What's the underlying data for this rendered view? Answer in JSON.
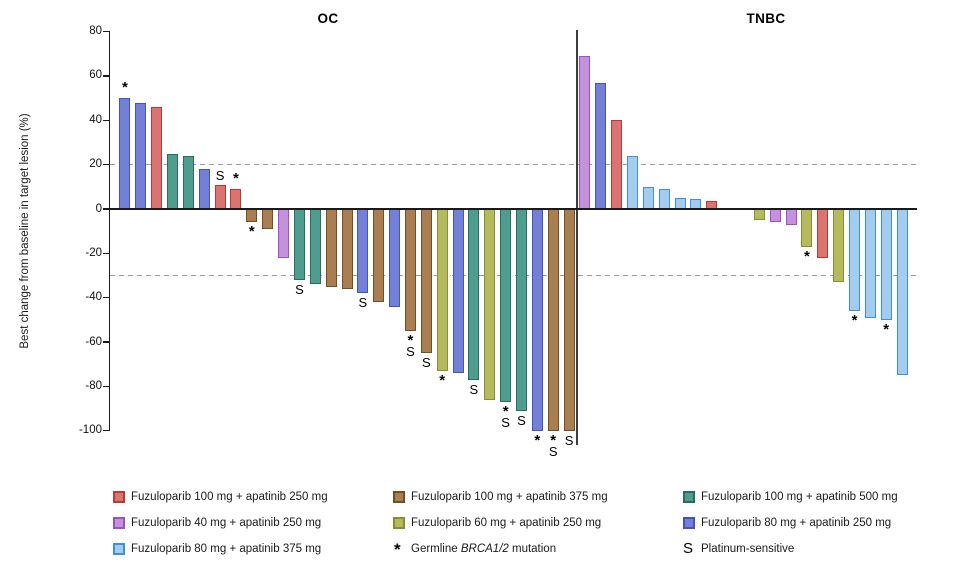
{
  "chart_data": {
    "type": "bar",
    "title": "",
    "xlabel": "",
    "ylabel": "Best change from baseline in target lesion (%)",
    "ylim": [
      -100,
      80
    ],
    "y_ticks": [
      80,
      60,
      40,
      20,
      0,
      -20,
      -40,
      -60,
      -80,
      -100
    ],
    "reference_lines": [
      20,
      -30
    ],
    "grid": "off",
    "legend_position": "bottom",
    "groups": {
      "f100_a250": {
        "label": "Fuzuloparib 100 mg + apatinib 250 mg",
        "fill": "#DB7370",
        "border": "#B43C34"
      },
      "f40_a250": {
        "label": "Fuzuloparib 40 mg + apatinib 250 mg",
        "fill": "#C590DC",
        "border": "#9A51C6"
      },
      "f80_a375": {
        "label": "Fuzuloparib 80 mg + apatinib 375 mg",
        "fill": "#A3CCEE",
        "border": "#3E8FDE"
      },
      "f100_a375": {
        "label": "Fuzuloparib 100 mg + apatinib 375 mg",
        "fill": "#A97E51",
        "border": "#715023"
      },
      "f60_a250": {
        "label": "Fuzuloparib 60 mg + apatinib 250 mg",
        "fill": "#B5BA5E",
        "border": "#878F2E"
      },
      "f100_a500": {
        "label": "Fuzuloparib 100 mg + apatinib 500 mg",
        "fill": "#4F9D8F",
        "border": "#2B6C60"
      },
      "f80_a250": {
        "label": "Fuzuloparib 80 mg + apatinib 250 mg",
        "fill": "#7280D5",
        "border": "#4453BE"
      }
    },
    "panels": [
      {
        "title": "OC",
        "bars": [
          {
            "value": 50,
            "group": "f80_a250",
            "marks": [
              "brca"
            ]
          },
          {
            "value": 48,
            "group": "f80_a250"
          },
          {
            "value": 46,
            "group": "f100_a250"
          },
          {
            "value": 25,
            "group": "f100_a500"
          },
          {
            "value": 24,
            "group": "f100_a500"
          },
          {
            "value": 18,
            "group": "f80_a250"
          },
          {
            "value": 11,
            "group": "f100_a250",
            "marks": [
              "platinum"
            ]
          },
          {
            "value": 9,
            "group": "f100_a250",
            "marks": [
              "brca"
            ]
          },
          {
            "value": -6,
            "group": "f100_a375",
            "marks": [
              "brca"
            ]
          },
          {
            "value": -9,
            "group": "f100_a375"
          },
          {
            "value": -22,
            "group": "f40_a250"
          },
          {
            "value": -32,
            "group": "f100_a500",
            "marks": [
              "platinum"
            ]
          },
          {
            "value": -34,
            "group": "f100_a500"
          },
          {
            "value": -35,
            "group": "f100_a375"
          },
          {
            "value": -36,
            "group": "f100_a375"
          },
          {
            "value": -38,
            "group": "f80_a250",
            "marks": [
              "platinum"
            ]
          },
          {
            "value": -42,
            "group": "f100_a375"
          },
          {
            "value": -44,
            "group": "f80_a250"
          },
          {
            "value": -55,
            "group": "f100_a375",
            "marks": [
              "brca",
              "platinum"
            ]
          },
          {
            "value": -65,
            "group": "f100_a375",
            "marks": [
              "platinum"
            ]
          },
          {
            "value": -73,
            "group": "f60_a250",
            "marks": [
              "brca"
            ]
          },
          {
            "value": -74,
            "group": "f80_a250"
          },
          {
            "value": -77,
            "group": "f100_a500",
            "marks": [
              "platinum"
            ]
          },
          {
            "value": -86,
            "group": "f60_a250"
          },
          {
            "value": -87,
            "group": "f100_a500",
            "marks": [
              "brca",
              "platinum"
            ]
          },
          {
            "value": -91,
            "group": "f100_a500",
            "marks": [
              "platinum"
            ]
          },
          {
            "value": -100,
            "group": "f80_a250",
            "marks": [
              "brca"
            ]
          },
          {
            "value": -100,
            "group": "f100_a375",
            "marks": [
              "brca",
              "platinum"
            ]
          },
          {
            "value": -100,
            "group": "f100_a375",
            "marks": [
              "platinum"
            ]
          }
        ]
      },
      {
        "title": "TNBC",
        "bars": [
          {
            "value": 69,
            "group": "f40_a250"
          },
          {
            "value": 57,
            "group": "f80_a250"
          },
          {
            "value": 40,
            "group": "f100_a250"
          },
          {
            "value": 24,
            "group": "f80_a375"
          },
          {
            "value": 10,
            "group": "f80_a375"
          },
          {
            "value": 9,
            "group": "f80_a375"
          },
          {
            "value": 5,
            "group": "f80_a375"
          },
          {
            "value": 4.5,
            "group": "f80_a375"
          },
          {
            "value": 3.5,
            "group": "f100_a250"
          },
          {
            "value": 0,
            "group": null
          },
          {
            "value": 0,
            "group": null
          },
          {
            "value": -5,
            "group": "f60_a250"
          },
          {
            "value": -6,
            "group": "f40_a250"
          },
          {
            "value": -7,
            "group": "f40_a250"
          },
          {
            "value": -17,
            "group": "f60_a250",
            "marks": [
              "brca"
            ]
          },
          {
            "value": -22,
            "group": "f100_a250"
          },
          {
            "value": -33,
            "group": "f60_a250"
          },
          {
            "value": -46,
            "group": "f80_a375",
            "marks": [
              "brca"
            ]
          },
          {
            "value": -49,
            "group": "f80_a375"
          },
          {
            "value": -50,
            "group": "f80_a375",
            "marks": [
              "brca"
            ]
          },
          {
            "value": -75,
            "group": "f80_a375"
          }
        ]
      }
    ]
  },
  "legend": {
    "brca": {
      "symbol": "*",
      "prefix": "Germline ",
      "italic": "BRCA1/2",
      "suffix": " mutation"
    },
    "platinum": {
      "symbol": "S",
      "label": "Platinum-sensitive"
    },
    "columns": [
      [
        {
          "type": "group",
          "group": "f100_a250"
        },
        {
          "type": "group",
          "group": "f40_a250"
        },
        {
          "type": "group",
          "group": "f80_a375"
        }
      ],
      [
        {
          "type": "group",
          "group": "f100_a375"
        },
        {
          "type": "group",
          "group": "f60_a250"
        },
        {
          "type": "brca"
        }
      ],
      [
        {
          "type": "group",
          "group": "f100_a500"
        },
        {
          "type": "group",
          "group": "f80_a250"
        },
        {
          "type": "platinum"
        }
      ]
    ]
  }
}
